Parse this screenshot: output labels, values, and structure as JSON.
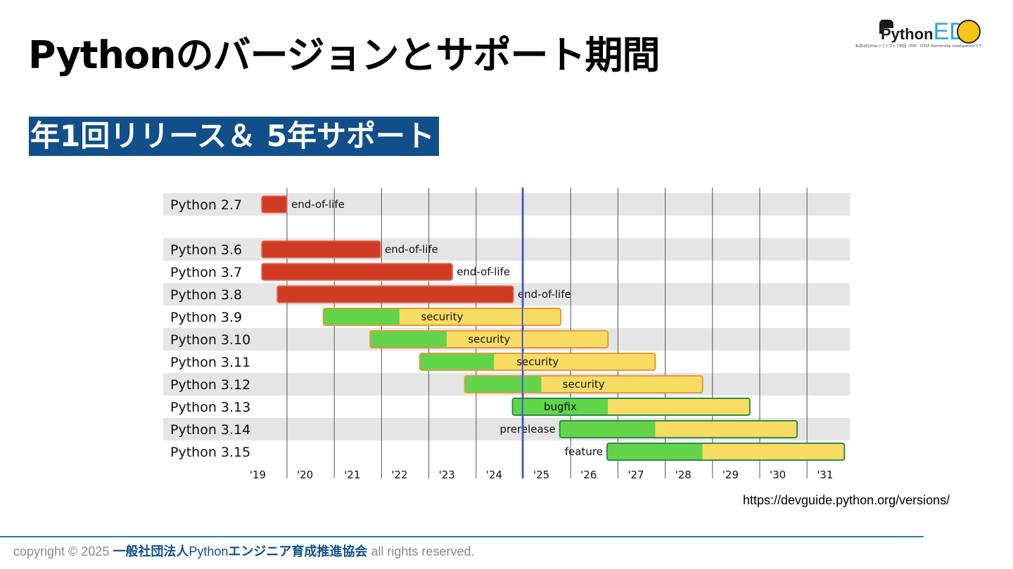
{
  "title": "Pythonのバージョンとサポート期間",
  "subtitle": "年1回リリース＆ 5年サポート",
  "logo": {
    "python_text": "Python",
    "ed_text": "ED",
    "note": "私達はPythonソフトウェア財団（PSF）のPSF Partnership Levelsponsorです。"
  },
  "source_url": "https://devguide.python.org/versions/",
  "footer": {
    "prefix": "copyright © 2025 ",
    "org_a": "一般社団法人",
    "org_b": "Python",
    "org_c": "エンジニア育成推進協会",
    "suffix": " all rights reserved."
  },
  "colors": {
    "end_of_life": "#d13a22",
    "feature_bugfix": "#62d44a",
    "security": "#f8dc62",
    "today_line": "#3a56f0",
    "row_stripe": "#e5e5e5"
  },
  "chart_data": {
    "type": "bar",
    "subtype": "gantt",
    "x_ticks": [
      "'19",
      "'20",
      "'21",
      "'22",
      "'23",
      "'24",
      "'25",
      "'26",
      "'27",
      "'28",
      "'29",
      "'30",
      "'31"
    ],
    "xlim": [
      2019.0,
      2031.5
    ],
    "today": 2024.98,
    "grid": true,
    "rows": [
      {
        "label": "Python 2.7",
        "start": 2019.0,
        "end": 2020.0,
        "status_label": "end-of-life",
        "kind": "eol"
      },
      {
        "label": "",
        "kind": "spacer"
      },
      {
        "label": "Python 3.6",
        "start": 2019.0,
        "end": 2021.98,
        "status_label": "end-of-life",
        "kind": "eol"
      },
      {
        "label": "Python 3.7",
        "start": 2019.0,
        "end": 2023.5,
        "status_label": "end-of-life",
        "kind": "eol"
      },
      {
        "label": "Python 3.8",
        "start": 2019.79,
        "end": 2024.79,
        "status_label": "end-of-life",
        "kind": "eol"
      },
      {
        "label": "Python 3.9",
        "start": 2020.77,
        "bugfix_end": 2022.38,
        "end": 2025.79,
        "status_label": "security",
        "kind": "security"
      },
      {
        "label": "Python 3.10",
        "start": 2021.76,
        "bugfix_end": 2023.38,
        "end": 2026.79,
        "status_label": "security",
        "kind": "security"
      },
      {
        "label": "Python 3.11",
        "start": 2022.81,
        "bugfix_end": 2024.38,
        "end": 2027.79,
        "status_label": "security",
        "kind": "security"
      },
      {
        "label": "Python 3.12",
        "start": 2023.76,
        "bugfix_end": 2025.38,
        "end": 2028.79,
        "status_label": "security",
        "kind": "security"
      },
      {
        "label": "Python 3.13",
        "start": 2024.77,
        "bugfix_end": 2026.79,
        "end": 2029.79,
        "status_label": "bugfix",
        "kind": "bugfix"
      },
      {
        "label": "Python 3.14",
        "start": 2025.77,
        "bugfix_end": 2027.79,
        "end": 2030.79,
        "status_label": "prerelease",
        "kind": "prerelease"
      },
      {
        "label": "Python 3.15",
        "start": 2026.77,
        "bugfix_end": 2028.79,
        "end": 2031.79,
        "status_label": "feature",
        "kind": "feature"
      }
    ]
  }
}
